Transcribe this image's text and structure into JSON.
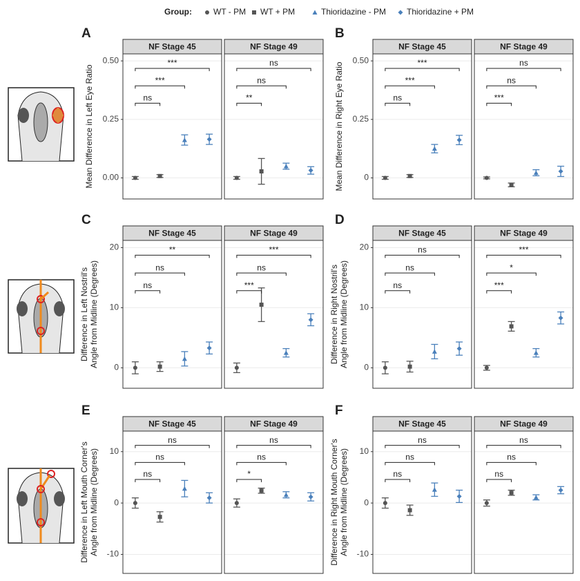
{
  "legend": {
    "title": "Group:",
    "items": [
      {
        "name": "WT - PM",
        "color": "#555555",
        "marker": "circle"
      },
      {
        "name": "WT + PM",
        "color": "#555555",
        "marker": "square"
      },
      {
        "name": "Thioridazine - PM",
        "color": "#4a80bb",
        "marker": "triangle"
      },
      {
        "name": "Thioridazine + PM",
        "color": "#4a80bb",
        "marker": "diamond"
      }
    ]
  },
  "chart_data": [
    {
      "type": "errorbar",
      "panel": "A",
      "ylabel": "Mean Difference in Left Eye Ratio",
      "ylim": [
        -0.09,
        0.53
      ],
      "yticks": [
        {
          "value": 0,
          "label": "0.00"
        },
        0.25,
        {
          "value": 0.5,
          "label": "0.50"
        }
      ],
      "grid": true,
      "facets": [
        {
          "title": "NF Stage 45",
          "values": [
            0,
            0.008,
            0.162,
            0.165
          ],
          "errors": [
            0.006,
            0.006,
            0.022,
            0.022
          ],
          "comparisons": [
            {
              "groups": [
                0,
                1
              ],
              "label": "ns"
            },
            {
              "groups": [
                0,
                2
              ],
              "label": "***"
            },
            {
              "groups": [
                0,
                3
              ],
              "label": "***"
            }
          ]
        },
        {
          "title": "NF Stage 49",
          "values": [
            0,
            0.028,
            0.05,
            0.032
          ],
          "errors": [
            0.006,
            0.055,
            0.013,
            0.016
          ],
          "comparisons": [
            {
              "groups": [
                0,
                1
              ],
              "label": "**"
            },
            {
              "groups": [
                0,
                2
              ],
              "label": "ns"
            },
            {
              "groups": [
                0,
                3
              ],
              "label": "ns"
            }
          ]
        }
      ]
    },
    {
      "type": "errorbar",
      "panel": "B",
      "ylabel": "Mean Difference in Right Eye Ratio",
      "ylim": [
        -0.09,
        0.53
      ],
      "yticks": [
        0,
        0.25,
        {
          "value": 0.5,
          "label": "0.50"
        }
      ],
      "grid": true,
      "facets": [
        {
          "title": "NF Stage 45",
          "values": [
            0,
            0.008,
            0.125,
            0.162
          ],
          "errors": [
            0.006,
            0.006,
            0.018,
            0.02
          ],
          "comparisons": [
            {
              "groups": [
                0,
                1
              ],
              "label": "ns"
            },
            {
              "groups": [
                0,
                2
              ],
              "label": "***"
            },
            {
              "groups": [
                0,
                3
              ],
              "label": "***"
            }
          ]
        },
        {
          "title": "NF Stage 49",
          "values": [
            0,
            -0.03,
            0.022,
            0.028
          ],
          "errors": [
            0.004,
            0.008,
            0.013,
            0.022
          ],
          "comparisons": [
            {
              "groups": [
                0,
                1
              ],
              "label": "***"
            },
            {
              "groups": [
                0,
                2
              ],
              "label": "ns"
            },
            {
              "groups": [
                0,
                3
              ],
              "label": "ns"
            }
          ]
        }
      ]
    },
    {
      "type": "errorbar",
      "panel": "C",
      "ylabel": [
        "Difference in Left Nostril's",
        "Angle from Midline (Degrees)"
      ],
      "ylim": [
        -3.4,
        21.2
      ],
      "yticks": [
        0,
        10,
        20
      ],
      "grid": true,
      "facets": [
        {
          "title": "NF Stage 45",
          "values": [
            0,
            0.2,
            1.5,
            3.3
          ],
          "errors": [
            1.0,
            0.8,
            1.2,
            1.0
          ],
          "comparisons": [
            {
              "groups": [
                0,
                1
              ],
              "label": "ns"
            },
            {
              "groups": [
                0,
                2
              ],
              "label": "ns"
            },
            {
              "groups": [
                0,
                3
              ],
              "label": "**"
            }
          ]
        },
        {
          "title": "NF Stage 49",
          "values": [
            0,
            10.5,
            2.5,
            8
          ],
          "errors": [
            0.8,
            2.8,
            0.7,
            1.0
          ],
          "comparisons": [
            {
              "groups": [
                0,
                1
              ],
              "label": "***"
            },
            {
              "groups": [
                0,
                2
              ],
              "label": "ns"
            },
            {
              "groups": [
                0,
                3
              ],
              "label": "***"
            }
          ]
        }
      ]
    },
    {
      "type": "errorbar",
      "panel": "D",
      "ylabel": [
        "Difference in Right Nostril's",
        "Angle from Midline (Degrees)"
      ],
      "ylim": [
        -3.4,
        21.2
      ],
      "yticks": [
        0,
        10,
        20
      ],
      "grid": true,
      "facets": [
        {
          "title": "NF Stage 45",
          "values": [
            0,
            0.2,
            2.7,
            3.2
          ],
          "errors": [
            1.0,
            0.9,
            1.2,
            1.1
          ],
          "comparisons": [
            {
              "groups": [
                0,
                1
              ],
              "label": "ns"
            },
            {
              "groups": [
                0,
                2
              ],
              "label": "ns"
            },
            {
              "groups": [
                0,
                3
              ],
              "label": "ns"
            }
          ]
        },
        {
          "title": "NF Stage 49",
          "values": [
            0,
            6.9,
            2.5,
            8.3
          ],
          "errors": [
            0.4,
            0.8,
            0.7,
            1.0
          ],
          "comparisons": [
            {
              "groups": [
                0,
                1
              ],
              "label": "***"
            },
            {
              "groups": [
                0,
                2
              ],
              "label": "*"
            },
            {
              "groups": [
                0,
                3
              ],
              "label": "***"
            }
          ]
        }
      ]
    },
    {
      "type": "errorbar",
      "panel": "E",
      "ylabel": [
        "Difference in Left Mouth Corner's",
        "Angle from Midline (Degrees)"
      ],
      "ylim": [
        -13.7,
        14
      ],
      "yticks": [
        -10,
        0,
        10
      ],
      "grid": true,
      "facets": [
        {
          "title": "NF Stage 45",
          "values": [
            0,
            -2.7,
            2.8,
            1.0
          ],
          "errors": [
            1.0,
            1.0,
            1.6,
            1.0
          ],
          "comparisons": [
            {
              "groups": [
                0,
                1
              ],
              "label": "ns"
            },
            {
              "groups": [
                0,
                2
              ],
              "label": "ns"
            },
            {
              "groups": [
                0,
                3
              ],
              "label": "ns"
            }
          ]
        },
        {
          "title": "NF Stage 49",
          "values": [
            0,
            2.4,
            1.6,
            1.2
          ],
          "errors": [
            0.8,
            0.5,
            0.6,
            0.8
          ],
          "comparisons": [
            {
              "groups": [
                0,
                1
              ],
              "label": "*"
            },
            {
              "groups": [
                0,
                2
              ],
              "label": "ns"
            },
            {
              "groups": [
                0,
                3
              ],
              "label": "ns"
            }
          ]
        }
      ]
    },
    {
      "type": "errorbar",
      "panel": "F",
      "ylabel": [
        "Difference in Right Mouth Corner's",
        "Angle from Midline (Degrees)"
      ],
      "ylim": [
        -13.7,
        14
      ],
      "yticks": [
        -10,
        0,
        10
      ],
      "grid": true,
      "facets": [
        {
          "title": "NF Stage 45",
          "values": [
            0,
            -1.4,
            2.6,
            1.3
          ],
          "errors": [
            1.0,
            1.0,
            1.3,
            1.2
          ],
          "comparisons": [
            {
              "groups": [
                0,
                1
              ],
              "label": "ns"
            },
            {
              "groups": [
                0,
                2
              ],
              "label": "ns"
            },
            {
              "groups": [
                0,
                3
              ],
              "label": "ns"
            }
          ]
        },
        {
          "title": "NF Stage 49",
          "values": [
            0,
            2.0,
            1.1,
            2.5
          ],
          "errors": [
            0.6,
            0.5,
            0.5,
            0.7
          ],
          "comparisons": [
            {
              "groups": [
                0,
                1
              ],
              "label": "ns"
            },
            {
              "groups": [
                0,
                2
              ],
              "label": "ns"
            },
            {
              "groups": [
                0,
                3
              ],
              "label": "ns"
            }
          ]
        }
      ]
    }
  ]
}
